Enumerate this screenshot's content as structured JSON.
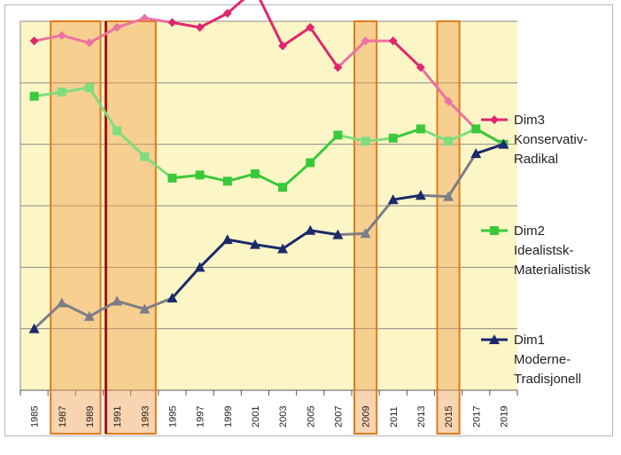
{
  "chart_data": {
    "type": "line",
    "title": "",
    "xlabel": "",
    "ylabel": "",
    "ylim": [
      -4,
      2
    ],
    "grid": true,
    "legend_position": "right",
    "x": [
      "1985",
      "1987",
      "1989",
      "1991",
      "1993",
      "1995",
      "1997",
      "1999",
      "2001",
      "2003",
      "2005",
      "2007",
      "2009",
      "2011",
      "2013",
      "2015",
      "2017",
      "2019"
    ],
    "series": [
      {
        "name": "Dim3 Konservativ-Radikal",
        "legend_lines": [
          "Dim3",
          "Konservativ-",
          "Radikal"
        ],
        "color": "#e0266e",
        "marker": "diamond",
        "values": [
          1.68,
          1.77,
          1.65,
          1.9,
          2.05,
          1.98,
          1.9,
          2.13,
          2.52,
          1.6,
          1.9,
          1.25,
          1.68,
          1.68,
          1.25,
          0.7,
          0.25,
          0.0
        ]
      },
      {
        "name": "Dim2 Idealistsk-Materialistisk",
        "legend_lines": [
          "Dim2",
          "Idealistsk-",
          "Materialistisk"
        ],
        "color": "#3ac93a",
        "marker": "square",
        "values": [
          0.78,
          0.85,
          0.92,
          0.22,
          -0.2,
          -0.55,
          -0.5,
          -0.6,
          -0.48,
          -0.7,
          -0.3,
          0.15,
          0.05,
          0.1,
          0.25,
          0.05,
          0.25,
          0.0
        ]
      },
      {
        "name": "Dim1 Moderne-Tradisjonell",
        "legend_lines": [
          "Dim1",
          "Moderne-",
          "Tradisjonell"
        ],
        "color": "#1b2a6b",
        "marker": "triangle",
        "values": [
          -3.0,
          -2.58,
          -2.8,
          -2.55,
          -2.68,
          -2.5,
          -2.0,
          -1.55,
          -1.63,
          -1.7,
          -1.4,
          -1.47,
          -1.45,
          -0.9,
          -0.83,
          -0.85,
          -0.15,
          0.0
        ]
      }
    ],
    "highlight_color": "#f0a050",
    "highlight_bands": [
      {
        "from": "1987",
        "to": "1989"
      },
      {
        "from": "1991",
        "to": "1993"
      },
      {
        "from": "2009",
        "to": "2009"
      },
      {
        "from": "2015",
        "to": "2015"
      }
    ],
    "reference_line": {
      "at": "1991",
      "color": "#b01010"
    },
    "plot_background": "#fcf6c6"
  }
}
